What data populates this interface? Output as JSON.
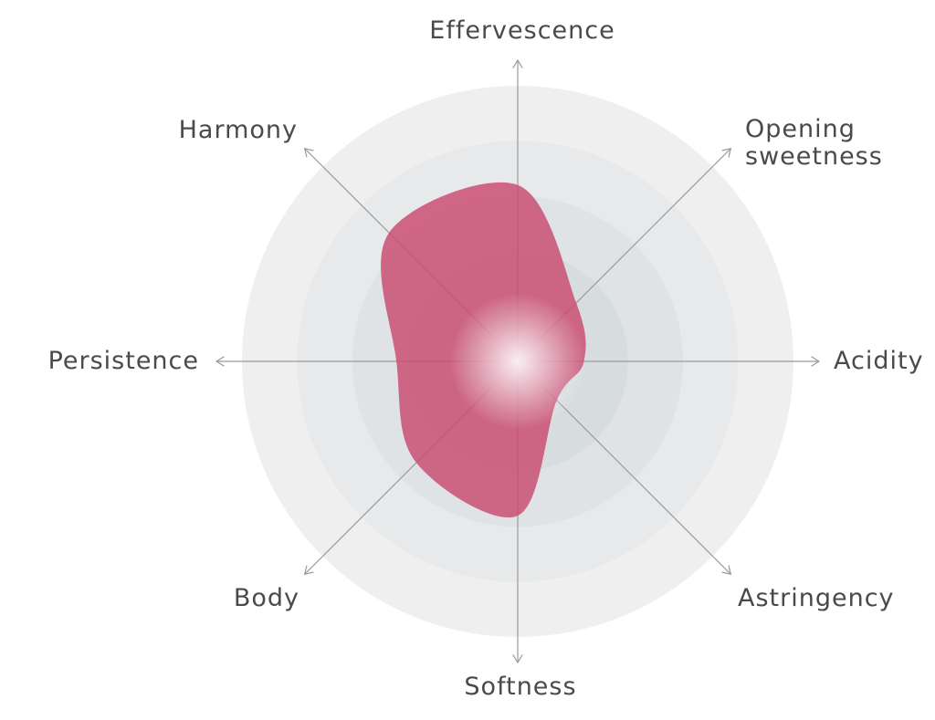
{
  "chart_data": {
    "type": "radar",
    "title": "",
    "axes": [
      {
        "label": "Effervescence",
        "lines": [
          "Effervescence"
        ]
      },
      {
        "label": "Opening sweetness",
        "lines": [
          "Opening",
          "sweetness"
        ]
      },
      {
        "label": "Acidity",
        "lines": [
          "Acidity"
        ]
      },
      {
        "label": "Astringency",
        "lines": [
          "Astringency"
        ]
      },
      {
        "label": "Softness",
        "lines": [
          "Softness"
        ]
      },
      {
        "label": "Body",
        "lines": [
          "Body"
        ]
      },
      {
        "label": "Persistence",
        "lines": [
          "Persistence"
        ]
      },
      {
        "label": "Harmony",
        "lines": [
          "Harmony"
        ]
      }
    ],
    "levels": 5,
    "range": [
      0,
      5
    ],
    "series": [
      {
        "values": [
          3.2,
          1.5,
          1.2,
          1.0,
          2.8,
          2.6,
          2.2,
          3.3
        ],
        "color": "#c9496f"
      }
    ],
    "grid": true,
    "legend": "none"
  },
  "colors": {
    "ring_outer": "#efefef",
    "ring_inner": "#cfd7da",
    "axis_line": "#9b9b9b",
    "label_text": "#4a4a4a",
    "area_fill": "#c9496f"
  }
}
